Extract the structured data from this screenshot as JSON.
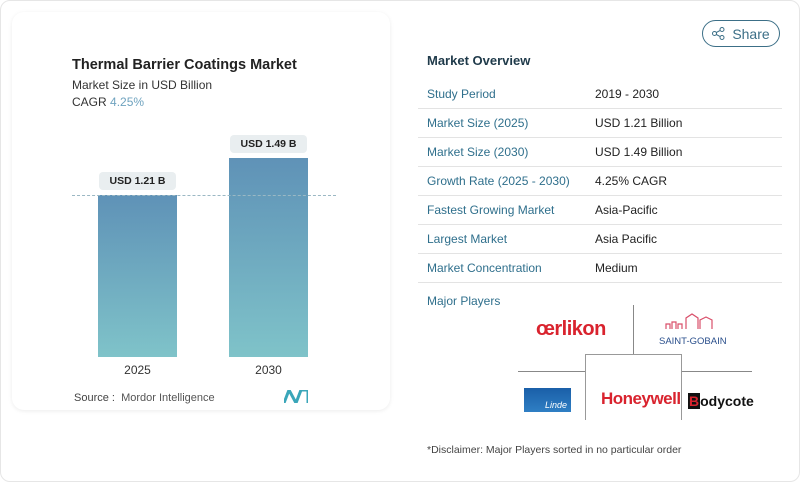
{
  "chart_data": {
    "type": "bar",
    "title": "Thermal Barrier Coatings Market",
    "subtitle": "Market Size in USD Billion",
    "cagr_label": "CAGR",
    "cagr_value": "4.25%",
    "categories": [
      "2025",
      "2030"
    ],
    "values": [
      1.21,
      1.49
    ],
    "data_labels": [
      "USD 1.21 B",
      "USD 1.49 B"
    ],
    "bar_color_top": "#5f92b7",
    "bar_color_bottom": "#7fc3c9",
    "source_label": "Source :",
    "source": "Mordor Intelligence"
  },
  "share_label": "Share",
  "overview": {
    "title": "Market Overview",
    "rows": [
      {
        "k": "Study Period",
        "v": "2019 - 2030"
      },
      {
        "k": "Market Size (2025)",
        "v": "USD 1.21 Billion"
      },
      {
        "k": "Market Size (2030)",
        "v": "USD 1.49 Billion"
      },
      {
        "k": "Growth Rate (2025 - 2030)",
        "v": "4.25% CAGR"
      },
      {
        "k": "Fastest Growing Market",
        "v": "Asia-Pacific"
      },
      {
        "k": "Largest Market",
        "v": "Asia Pacific"
      },
      {
        "k": "Market Concentration",
        "v": "Medium"
      }
    ]
  },
  "players": {
    "title": "Major Players",
    "logos": [
      "oerlikon",
      "SAINT-GOBAIN",
      "Linde",
      "Honeywell",
      "Bodycote"
    ]
  },
  "disclaimer": "*Disclaimer: Major Players sorted in no particular order"
}
